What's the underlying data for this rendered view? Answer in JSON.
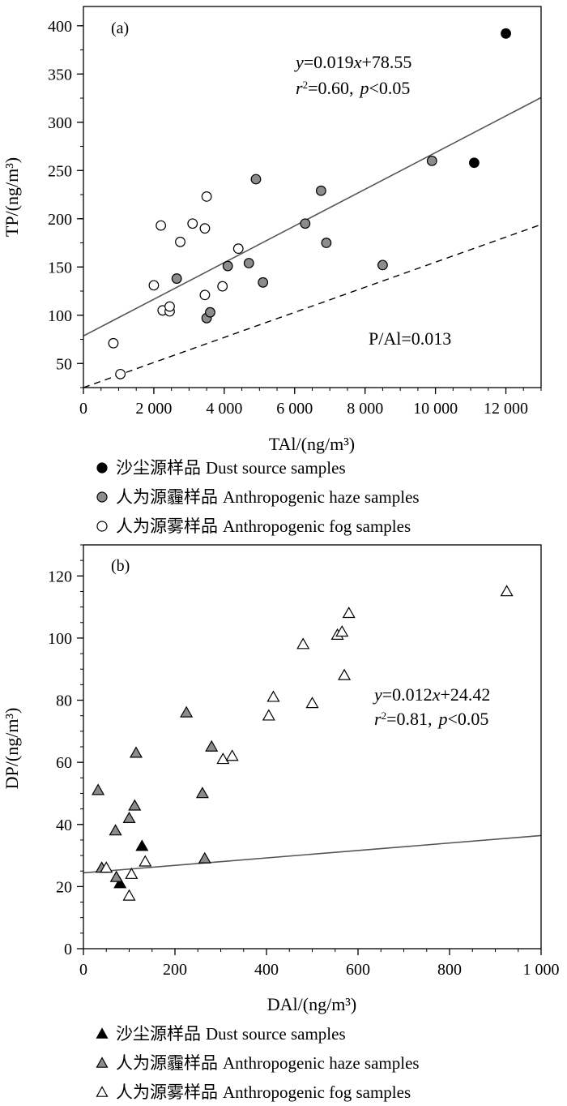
{
  "chart_data": [
    {
      "type": "scatter",
      "panel_label": "(a)",
      "xlabel": "TAl/(ng/m³)",
      "ylabel": "TP/(ng/m³)",
      "xlim": [
        0,
        13000
      ],
      "ylim": [
        25,
        420
      ],
      "x_ticks": [
        0,
        2000,
        4000,
        6000,
        8000,
        10000,
        12000
      ],
      "x_tick_labels": [
        "0",
        "2 000",
        "4 000",
        "6 000",
        "8 000",
        "10 000",
        "12 000"
      ],
      "y_ticks": [
        50,
        100,
        150,
        200,
        250,
        300,
        350,
        400
      ],
      "y_tick_labels": [
        "50",
        "100",
        "150",
        "200",
        "250",
        "300",
        "350",
        "400"
      ],
      "regression": {
        "slope": 0.019,
        "intercept": 78.55,
        "eq_y": "y",
        "eq_mid": "=0.019",
        "eq_x": "x",
        "eq_tail": "+78.55",
        "r_sym": "r",
        "r_sup": "2",
        "r_val": "=0.60,",
        "p_sym": "p",
        "p_val": "<0.05"
      },
      "reference_line": {
        "label": "P/Al=0.013",
        "slope": 0.013,
        "intercept": 25,
        "style": "dashed"
      },
      "series": [
        {
          "name": "沙尘源样品 Dust source samples",
          "marker": "circle",
          "fill": "#000000",
          "points": [
            [
              12000,
              392
            ],
            [
              11100,
              258
            ]
          ]
        },
        {
          "name": "人为源霾样品 Anthropogenic haze samples",
          "marker": "circle",
          "fill": "#8c8c8c",
          "points": [
            [
              4900,
              241
            ],
            [
              6750,
              229
            ],
            [
              9900,
              260
            ],
            [
              6300,
              195
            ],
            [
              6900,
              175
            ],
            [
              4100,
              151
            ],
            [
              4700,
              154
            ],
            [
              2650,
              138
            ],
            [
              5100,
              134
            ],
            [
              8500,
              152
            ],
            [
              3500,
              97
            ],
            [
              3600,
              103
            ]
          ]
        },
        {
          "name": "人为源雾样品 Anthropogenic fog samples",
          "marker": "circle",
          "fill": "#ffffff",
          "points": [
            [
              850,
              71
            ],
            [
              1050,
              39
            ],
            [
              2000,
              131
            ],
            [
              2200,
              193
            ],
            [
              2250,
              105
            ],
            [
              2450,
              104
            ],
            [
              2450,
              109
            ],
            [
              2750,
              176
            ],
            [
              3100,
              195
            ],
            [
              3450,
              190
            ],
            [
              3500,
              223
            ],
            [
              3450,
              121
            ],
            [
              3950,
              130
            ],
            [
              4400,
              169
            ]
          ]
        }
      ],
      "legend": [
        {
          "cn": "沙尘源样品",
          "en": "Dust source samples"
        },
        {
          "cn": "人为源霾样品",
          "en": "Anthropogenic haze samples"
        },
        {
          "cn": "人为源雾样品",
          "en": "Anthropogenic fog samples"
        }
      ]
    },
    {
      "type": "scatter",
      "panel_label": "(b)",
      "xlabel": "DAl/(ng/m³)",
      "ylabel": "DP/(ng/m³)",
      "xlim": [
        0,
        1000
      ],
      "ylim": [
        0,
        130
      ],
      "x_ticks": [
        0,
        200,
        400,
        600,
        800,
        1000
      ],
      "x_tick_labels": [
        "0",
        "200",
        "400",
        "600",
        "800",
        "1 000"
      ],
      "y_ticks": [
        0,
        20,
        40,
        60,
        80,
        100,
        120
      ],
      "y_tick_labels": [
        "0",
        "20",
        "40",
        "60",
        "80",
        "100",
        "120"
      ],
      "regression": {
        "slope": 0.012,
        "intercept": 24.42,
        "eq_y": "y",
        "eq_mid": "=0.012",
        "eq_x": "x",
        "eq_tail": "+24.42",
        "r_sym": "r",
        "r_sup": "2",
        "r_val": "=0.81,",
        "p_sym": "p",
        "p_val": "<0.05"
      },
      "series": [
        {
          "name": "沙尘源样品 Dust source samples",
          "marker": "triangle",
          "fill": "#000000",
          "points": [
            [
              128,
              33
            ],
            [
              80,
              21
            ]
          ]
        },
        {
          "name": "人为源霾样品 Anthropogenic haze samples",
          "marker": "triangle",
          "fill": "#8c8c8c",
          "points": [
            [
              32,
              51
            ],
            [
              40,
              26
            ],
            [
              70,
              38
            ],
            [
              72,
              23
            ],
            [
              100,
              42
            ],
            [
              112,
              46
            ],
            [
              115,
              63
            ],
            [
              225,
              76
            ],
            [
              260,
              50
            ],
            [
              265,
              29
            ],
            [
              280,
              65
            ]
          ]
        },
        {
          "name": "人为源雾样品 Anthropogenic fog samples",
          "marker": "triangle",
          "fill": "#ffffff",
          "points": [
            [
              50,
              26
            ],
            [
              100,
              17
            ],
            [
              105,
              24
            ],
            [
              135,
              28
            ],
            [
              305,
              61
            ],
            [
              325,
              62
            ],
            [
              405,
              75
            ],
            [
              415,
              81
            ],
            [
              480,
              98
            ],
            [
              500,
              79
            ],
            [
              555,
              101
            ],
            [
              565,
              102
            ],
            [
              570,
              88
            ],
            [
              580,
              108
            ],
            [
              925,
              115
            ]
          ]
        }
      ],
      "legend": [
        {
          "cn": "沙尘源样品",
          "en": "Dust source samples"
        },
        {
          "cn": "人为源霾样品",
          "en": "Anthropogenic haze samples"
        },
        {
          "cn": "人为源雾样品",
          "en": "Anthropogenic fog samples"
        }
      ]
    }
  ]
}
